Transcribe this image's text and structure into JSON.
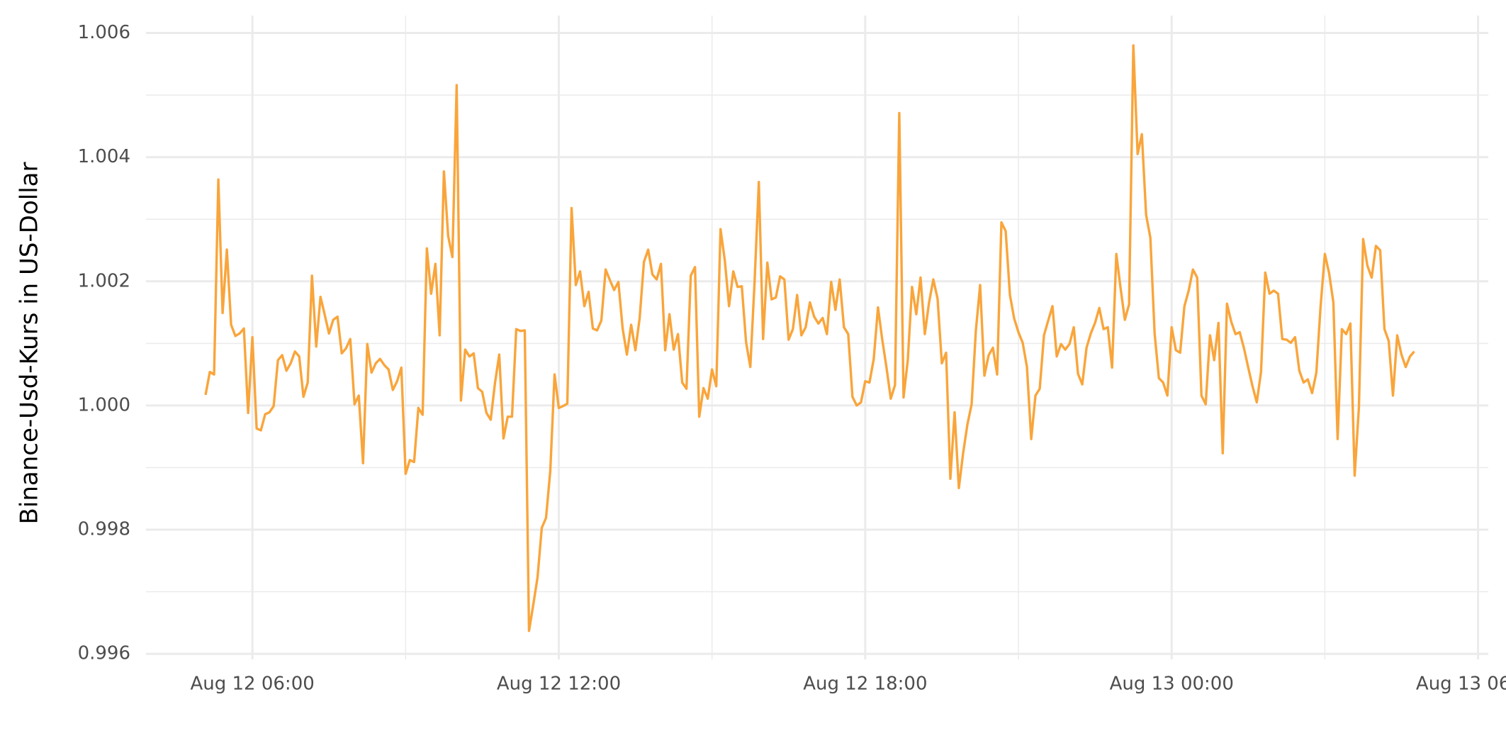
{
  "chart_data": {
    "type": "line",
    "y_label": "Binance-Usd-Kurs in US-Dollar",
    "color": "#f9a53b",
    "grid": true,
    "xlim": [
      "Aug 12 03:55",
      "Aug 13 06:12"
    ],
    "xticks": [
      "Aug 12 06:00",
      "Aug 12 12:00",
      "Aug 12 18:00",
      "Aug 13 00:00",
      "Aug 13 06:00"
    ],
    "minor_xticks": [
      "Aug 12 09:00",
      "Aug 12 15:00",
      "Aug 12 21:00",
      "Aug 13 03:00"
    ],
    "ylim": [
      0.99591,
      1.00628
    ],
    "yticks": [
      0.996,
      0.998,
      {
        "value": 1,
        "label": "1.000"
      },
      1.002,
      1.004,
      1.006
    ],
    "minor_yticks": [
      0.997,
      0.999,
      1.001,
      1.003,
      1.005
    ],
    "x": [
      "Aug 12 05:05",
      "Aug 12 05:10",
      "Aug 12 05:15",
      "Aug 12 05:20",
      "Aug 12 05:25",
      "Aug 12 05:30",
      "Aug 12 05:35",
      "Aug 12 05:40",
      "Aug 12 05:45",
      "Aug 12 05:50",
      "Aug 12 05:55",
      "Aug 12 06:00",
      "Aug 12 06:05",
      "Aug 12 06:10",
      "Aug 12 06:15",
      "Aug 12 06:20",
      "Aug 12 06:25",
      "Aug 12 06:30",
      "Aug 12 06:35",
      "Aug 12 06:40",
      "Aug 12 06:45",
      "Aug 12 06:50",
      "Aug 12 06:55",
      "Aug 12 07:00",
      "Aug 12 07:05",
      "Aug 12 07:10",
      "Aug 12 07:15",
      "Aug 12 07:20",
      "Aug 12 07:25",
      "Aug 12 07:30",
      "Aug 12 07:35",
      "Aug 12 07:40",
      "Aug 12 07:45",
      "Aug 12 07:50",
      "Aug 12 07:55",
      "Aug 12 08:00",
      "Aug 12 08:05",
      "Aug 12 08:10",
      "Aug 12 08:15",
      "Aug 12 08:20",
      "Aug 12 08:25",
      "Aug 12 08:30",
      "Aug 12 08:35",
      "Aug 12 08:40",
      "Aug 12 08:45",
      "Aug 12 08:50",
      "Aug 12 08:55",
      "Aug 12 09:00",
      "Aug 12 09:05",
      "Aug 12 09:10",
      "Aug 12 09:15",
      "Aug 12 09:20",
      "Aug 12 09:25",
      "Aug 12 09:30",
      "Aug 12 09:35",
      "Aug 12 09:40",
      "Aug 12 09:45",
      "Aug 12 09:50",
      "Aug 12 09:55",
      "Aug 12 10:00",
      "Aug 12 10:05",
      "Aug 12 10:10",
      "Aug 12 10:15",
      "Aug 12 10:20",
      "Aug 12 10:25",
      "Aug 12 10:30",
      "Aug 12 10:35",
      "Aug 12 10:40",
      "Aug 12 10:45",
      "Aug 12 10:50",
      "Aug 12 10:55",
      "Aug 12 11:00",
      "Aug 12 11:05",
      "Aug 12 11:10",
      "Aug 12 11:15",
      "Aug 12 11:20",
      "Aug 12 11:25",
      "Aug 12 11:30",
      "Aug 12 11:35",
      "Aug 12 11:40",
      "Aug 12 11:45",
      "Aug 12 11:50",
      "Aug 12 11:55",
      "Aug 12 12:00",
      "Aug 12 12:05",
      "Aug 12 12:10",
      "Aug 12 12:15",
      "Aug 12 12:20",
      "Aug 12 12:25",
      "Aug 12 12:30",
      "Aug 12 12:35",
      "Aug 12 12:40",
      "Aug 12 12:45",
      "Aug 12 12:50",
      "Aug 12 12:55",
      "Aug 12 13:00",
      "Aug 12 13:05",
      "Aug 12 13:10",
      "Aug 12 13:15",
      "Aug 12 13:20",
      "Aug 12 13:25",
      "Aug 12 13:30",
      "Aug 12 13:35",
      "Aug 12 13:40",
      "Aug 12 13:45",
      "Aug 12 13:50",
      "Aug 12 13:55",
      "Aug 12 14:00",
      "Aug 12 14:05",
      "Aug 12 14:10",
      "Aug 12 14:15",
      "Aug 12 14:20",
      "Aug 12 14:25",
      "Aug 12 14:30",
      "Aug 12 14:35",
      "Aug 12 14:40",
      "Aug 12 14:45",
      "Aug 12 14:50",
      "Aug 12 14:55",
      "Aug 12 15:00",
      "Aug 12 15:05",
      "Aug 12 15:10",
      "Aug 12 15:15",
      "Aug 12 15:20",
      "Aug 12 15:25",
      "Aug 12 15:30",
      "Aug 12 15:35",
      "Aug 12 15:40",
      "Aug 12 15:45",
      "Aug 12 15:50",
      "Aug 12 15:55",
      "Aug 12 16:00",
      "Aug 12 16:05",
      "Aug 12 16:10",
      "Aug 12 16:15",
      "Aug 12 16:20",
      "Aug 12 16:25",
      "Aug 12 16:30",
      "Aug 12 16:35",
      "Aug 12 16:40",
      "Aug 12 16:45",
      "Aug 12 16:50",
      "Aug 12 16:55",
      "Aug 12 17:00",
      "Aug 12 17:05",
      "Aug 12 17:10",
      "Aug 12 17:15",
      "Aug 12 17:20",
      "Aug 12 17:25",
      "Aug 12 17:30",
      "Aug 12 17:35",
      "Aug 12 17:40",
      "Aug 12 17:45",
      "Aug 12 17:50",
      "Aug 12 17:55",
      "Aug 12 18:00",
      "Aug 12 18:05",
      "Aug 12 18:10",
      "Aug 12 18:15",
      "Aug 12 18:20",
      "Aug 12 18:25",
      "Aug 12 18:30",
      "Aug 12 18:35",
      "Aug 12 18:40",
      "Aug 12 18:45",
      "Aug 12 18:50",
      "Aug 12 18:55",
      "Aug 12 19:00",
      "Aug 12 19:05",
      "Aug 12 19:10",
      "Aug 12 19:15",
      "Aug 12 19:20",
      "Aug 12 19:25",
      "Aug 12 19:30",
      "Aug 12 19:35",
      "Aug 12 19:40",
      "Aug 12 19:45",
      "Aug 12 19:50",
      "Aug 12 19:55",
      "Aug 12 20:00",
      "Aug 12 20:05",
      "Aug 12 20:10",
      "Aug 12 20:15",
      "Aug 12 20:20",
      "Aug 12 20:25",
      "Aug 12 20:30",
      "Aug 12 20:35",
      "Aug 12 20:40",
      "Aug 12 20:45",
      "Aug 12 20:50",
      "Aug 12 20:55",
      "Aug 12 21:00",
      "Aug 12 21:05",
      "Aug 12 21:10",
      "Aug 12 21:15",
      "Aug 12 21:20",
      "Aug 12 21:25",
      "Aug 12 21:30",
      "Aug 12 21:35",
      "Aug 12 21:40",
      "Aug 12 21:45",
      "Aug 12 21:50",
      "Aug 12 21:55",
      "Aug 12 22:00",
      "Aug 12 22:05",
      "Aug 12 22:10",
      "Aug 12 22:15",
      "Aug 12 22:20",
      "Aug 12 22:25",
      "Aug 12 22:30",
      "Aug 12 22:35",
      "Aug 12 22:40",
      "Aug 12 22:45",
      "Aug 12 22:50",
      "Aug 12 22:55",
      "Aug 12 23:00",
      "Aug 12 23:05",
      "Aug 12 23:10",
      "Aug 12 23:15",
      "Aug 12 23:20",
      "Aug 12 23:25",
      "Aug 12 23:30",
      "Aug 12 23:35",
      "Aug 12 23:40",
      "Aug 12 23:45",
      "Aug 12 23:50",
      "Aug 12 23:55",
      "Aug 13 00:00",
      "Aug 13 00:05",
      "Aug 13 00:10",
      "Aug 13 00:15",
      "Aug 13 00:20",
      "Aug 13 00:25",
      "Aug 13 00:30",
      "Aug 13 00:35",
      "Aug 13 00:40",
      "Aug 13 00:45",
      "Aug 13 00:50",
      "Aug 13 00:55",
      "Aug 13 01:00",
      "Aug 13 01:05",
      "Aug 13 01:10",
      "Aug 13 01:15",
      "Aug 13 01:20",
      "Aug 13 01:25",
      "Aug 13 01:30",
      "Aug 13 01:35",
      "Aug 13 01:40",
      "Aug 13 01:45",
      "Aug 13 01:50",
      "Aug 13 01:55",
      "Aug 13 02:00",
      "Aug 13 02:05",
      "Aug 13 02:10",
      "Aug 13 02:15",
      "Aug 13 02:20",
      "Aug 13 02:25",
      "Aug 13 02:30",
      "Aug 13 02:35",
      "Aug 13 02:40",
      "Aug 13 02:45",
      "Aug 13 02:50",
      "Aug 13 02:55",
      "Aug 13 03:00",
      "Aug 13 03:05",
      "Aug 13 03:10",
      "Aug 13 03:15",
      "Aug 13 03:20",
      "Aug 13 03:25",
      "Aug 13 03:30",
      "Aug 13 03:35",
      "Aug 13 03:40",
      "Aug 13 03:45",
      "Aug 13 03:50",
      "Aug 13 03:55",
      "Aug 13 04:00",
      "Aug 13 04:05",
      "Aug 13 04:10",
      "Aug 13 04:15",
      "Aug 13 04:20",
      "Aug 13 04:25",
      "Aug 13 04:30",
      "Aug 13 04:35",
      "Aug 13 04:40",
      "Aug 13 04:45"
    ],
    "values": [
      1.00017,
      1.00054,
      1.0005,
      1.00364,
      1.00149,
      1.00251,
      1.0013,
      1.00112,
      1.00116,
      1.00124,
      0.99988,
      1.0011,
      0.99963,
      0.9996,
      0.99986,
      0.99989,
      0.99999,
      1.00073,
      1.00081,
      1.00056,
      1.00068,
      1.00087,
      1.00079,
      1.00014,
      1.00037,
      1.00209,
      1.00095,
      1.00175,
      1.00146,
      1.00116,
      1.00138,
      1.00143,
      1.00084,
      1.00092,
      1.00107,
      1.00002,
      1.00016,
      0.99907,
      1.00099,
      1.00053,
      1.00068,
      1.00075,
      1.00065,
      1.00058,
      1.00025,
      1.00039,
      1.00061,
      0.9989,
      0.99912,
      0.99909,
      0.99996,
      0.99985,
      1.00253,
      1.0018,
      1.00228,
      1.00113,
      1.00377,
      1.00273,
      1.00239,
      1.00516,
      1.00008,
      1.0009,
      1.00079,
      1.00084,
      1.00028,
      1.00022,
      0.99988,
      0.99977,
      1.00036,
      1.00082,
      0.99947,
      0.99982,
      0.99982,
      1.00123,
      1.0012,
      1.00121,
      0.99637,
      0.99679,
      0.99723,
      0.99803,
      0.99819,
      0.99895,
      1.0005,
      0.99996,
      0.99999,
      1.00003,
      1.00318,
      1.00194,
      1.00216,
      1.0016,
      1.00183,
      1.00124,
      1.00121,
      1.00137,
      1.00219,
      1.00202,
      1.00186,
      1.00199,
      1.00124,
      1.00082,
      1.0013,
      1.00089,
      1.00141,
      1.00231,
      1.00251,
      1.00211,
      1.00203,
      1.00228,
      1.00089,
      1.00147,
      1.0009,
      1.00115,
      1.00037,
      1.00027,
      1.00209,
      1.00223,
      0.99982,
      1.00028,
      1.00011,
      1.00058,
      1.00031,
      1.00284,
      1.00234,
      1.0016,
      1.00216,
      1.00191,
      1.00192,
      1.00102,
      1.00062,
      1.00199,
      1.0036,
      1.00107,
      1.0023,
      1.00171,
      1.00174,
      1.00208,
      1.00203,
      1.00106,
      1.00123,
      1.00178,
      1.00113,
      1.00126,
      1.00166,
      1.00143,
      1.00132,
      1.00141,
      1.00115,
      1.00199,
      1.00154,
      1.00203,
      1.00126,
      1.00115,
      1.00014,
      1,
      1.00005,
      1.00039,
      1.00037,
      1.00075,
      1.00158,
      1.00106,
      1.00061,
      1.00011,
      1.00033,
      1.00471,
      1.00013,
      1.00073,
      1.00191,
      1.00147,
      1.00206,
      1.00115,
      1.00166,
      1.00203,
      1.00172,
      1.00068,
      1.00085,
      0.99882,
      0.99989,
      0.99867,
      0.99923,
      0.99969,
      1.00002,
      1.00121,
      1.00194,
      1.00048,
      1.00081,
      1.00093,
      1.0005,
      1.00295,
      1.00281,
      1.00178,
      1.0014,
      1.00118,
      1.00101,
      1.00062,
      0.99946,
      1.00016,
      1.00027,
      1.00113,
      1.00137,
      1.0016,
      1.00079,
      1.00099,
      1.0009,
      1.00099,
      1.00126,
      1.00051,
      1.00034,
      1.00093,
      1.00116,
      1.00133,
      1.00157,
      1.00123,
      1.00126,
      1.00061,
      1.00244,
      1.00189,
      1.00138,
      1.00163,
      1.0058,
      1.00405,
      1.00437,
      1.00307,
      1.0027,
      1.00116,
      1.00044,
      1.00037,
      1.00016,
      1.00126,
      1.00089,
      1.00085,
      1.0016,
      1.00185,
      1.00219,
      1.00206,
      1.00016,
      1.00002,
      1.00113,
      1.00073,
      1.00133,
      0.99923,
      1.00164,
      1.00135,
      1.00115,
      1.00118,
      1.00092,
      1.00061,
      1.00031,
      1.00005,
      1.00054,
      1.00214,
      1.0018,
      1.00185,
      1.0018,
      1.00107,
      1.00106,
      1.00101,
      1.0011,
      1.00056,
      1.00037,
      1.00042,
      1.0002,
      1.00053,
      1.0016,
      1.00244,
      1.00213,
      1.00166,
      0.99946,
      1.00123,
      1.00115,
      1.00132,
      0.99887,
      0.99997,
      1.00268,
      1.00225,
      1.00206,
      1.00257,
      1.0025,
      1.00123,
      1.00104,
      1.00016,
      1.00113,
      1.00082,
      1.00062,
      1.00079,
      1.00087
    ]
  }
}
